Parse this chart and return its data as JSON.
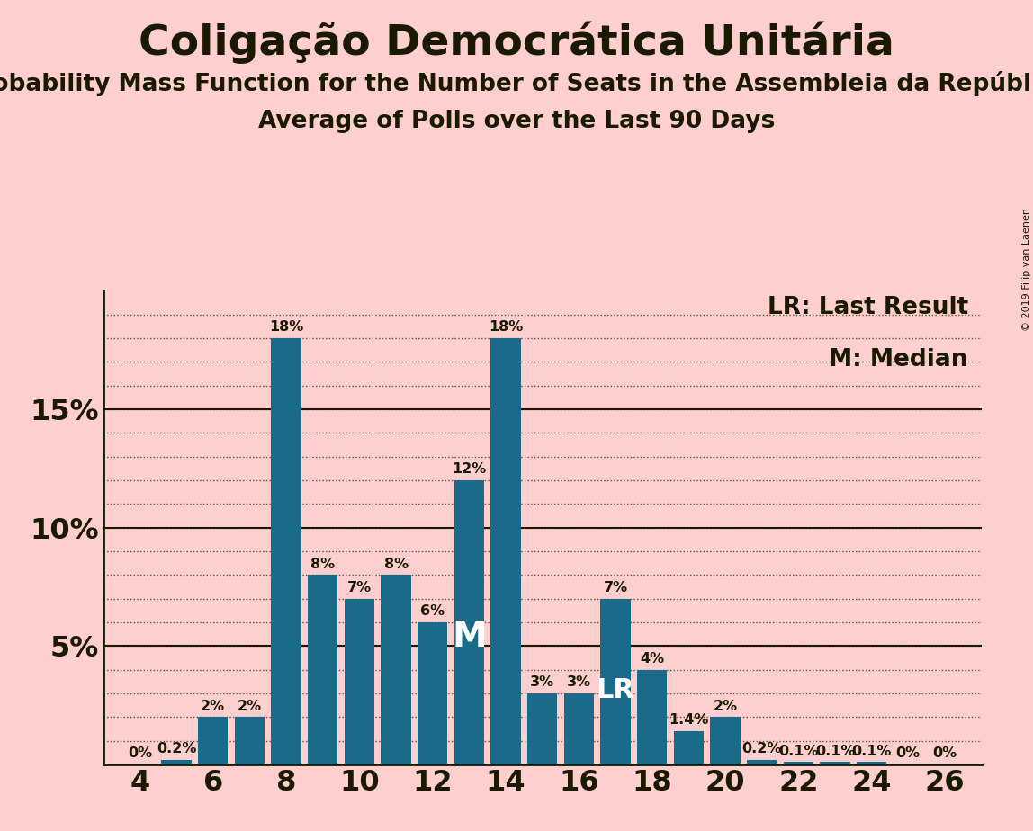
{
  "title": "Coligação Democrática Unitária",
  "subtitle1": "Probability Mass Function for the Number of Seats in the Assembleia da República",
  "subtitle2": "Average of Polls over the Last 90 Days",
  "copyright": "© 2019 Filip van Laenen",
  "legend_lr": "LR: Last Result",
  "legend_m": "M: Median",
  "background_color": "#FFCECE",
  "bar_color": "#1a6b8a",
  "seats": [
    4,
    5,
    6,
    7,
    8,
    9,
    10,
    11,
    12,
    13,
    14,
    15,
    16,
    17,
    18,
    19,
    20,
    21,
    22,
    23,
    24,
    25,
    26
  ],
  "values": [
    0.0,
    0.2,
    2.0,
    2.0,
    18.0,
    8.0,
    7.0,
    8.0,
    6.0,
    12.0,
    18.0,
    3.0,
    3.0,
    7.0,
    4.0,
    1.4,
    2.0,
    0.2,
    0.1,
    0.1,
    0.1,
    0.0,
    0.0
  ],
  "labels": [
    "0%",
    "0.2%",
    "2%",
    "2%",
    "18%",
    "8%",
    "7%",
    "8%",
    "6%",
    "12%",
    "18%",
    "3%",
    "3%",
    "7%",
    "4%",
    "1.4%",
    "2%",
    "0.2%",
    "0.1%",
    "0.1%",
    "0.1%",
    "0%",
    "0%"
  ],
  "median_seat": 13,
  "lr_seat": 17,
  "ylim": [
    0,
    20
  ],
  "yticks": [
    5,
    10,
    15
  ],
  "ytick_labels": [
    "5%",
    "10%",
    "15%"
  ],
  "grid_yticks": [
    1,
    2,
    3,
    4,
    5,
    6,
    7,
    8,
    9,
    10,
    11,
    12,
    13,
    14,
    15,
    16,
    17,
    18,
    19
  ],
  "xticks": [
    4,
    6,
    8,
    10,
    12,
    14,
    16,
    18,
    20,
    22,
    24,
    26
  ],
  "title_fontsize": 34,
  "subtitle_fontsize": 19,
  "label_fontsize": 11.5,
  "axis_fontsize": 23,
  "legend_fontsize": 19,
  "text_color": "#1a1a00"
}
